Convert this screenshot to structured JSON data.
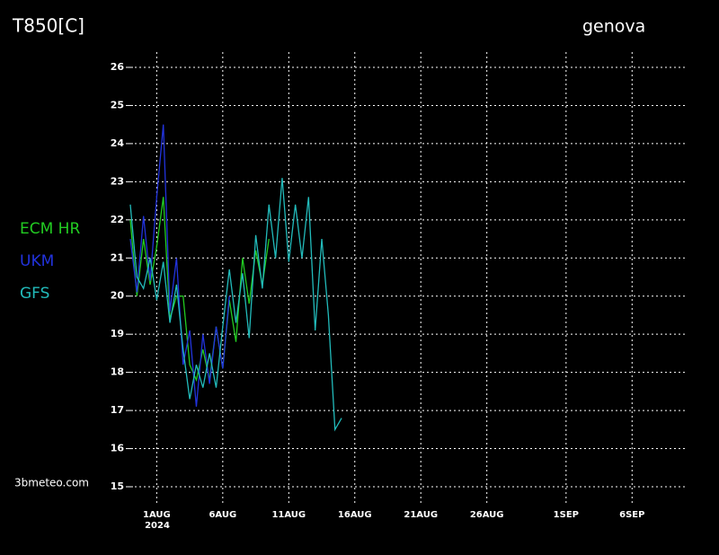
{
  "chart_data": {
    "type": "line",
    "title": "T850[C]",
    "subtitle": "genova",
    "year_label": "2024",
    "source": "3bmeteo.com",
    "xlim": [
      -1,
      41.2
    ],
    "ylim": [
      15,
      26
    ],
    "yticks": [
      15,
      16,
      17,
      18,
      19,
      20,
      21,
      22,
      23,
      24,
      25,
      26
    ],
    "xticks": [
      {
        "value": 1,
        "label": "1AUG"
      },
      {
        "value": 6,
        "label": "6AUG"
      },
      {
        "value": 11,
        "label": "11AUG"
      },
      {
        "value": 16,
        "label": "16AUG"
      },
      {
        "value": 21,
        "label": "21AUG"
      },
      {
        "value": 26,
        "label": "26AUG"
      },
      {
        "value": 32,
        "label": "1SEP"
      },
      {
        "value": 37,
        "label": "6SEP"
      }
    ],
    "grid": true,
    "series": [
      {
        "name": "ECM HR",
        "color": "#22cc22",
        "x": [
          -1,
          -0.5,
          0,
          0.5,
          1,
          1.5,
          2,
          2.5,
          3,
          3.5,
          4,
          4.5,
          5,
          5.5,
          6,
          6.5,
          7,
          7.5,
          8,
          8.5,
          9,
          9.5
        ],
        "values": [
          22.0,
          20.0,
          21.5,
          20.3,
          21.3,
          22.6,
          19.4,
          20.0,
          20.0,
          18.2,
          17.8,
          18.6,
          17.8,
          19.2,
          18.1,
          19.9,
          18.8,
          21.0,
          19.8,
          21.2,
          20.3,
          21.5
        ]
      },
      {
        "name": "UKM",
        "color": "#2233dd",
        "x": [
          -1,
          -0.5,
          0,
          0.5,
          1,
          1.5,
          2,
          2.5,
          3,
          3.5,
          4,
          4.5,
          5,
          5.5,
          6,
          6.5
        ],
        "values": [
          21.5,
          20.1,
          22.1,
          20.4,
          22.6,
          24.5,
          19.6,
          21.0,
          18.2,
          19.1,
          17.1,
          19.0,
          17.7,
          19.2,
          18.1,
          20.0
        ]
      },
      {
        "name": "GFS",
        "color": "#22bbbb",
        "x": [
          -1,
          -0.5,
          0,
          0.5,
          1,
          1.5,
          2,
          2.5,
          3,
          3.5,
          4,
          4.5,
          5,
          5.5,
          6,
          6.5,
          7,
          7.5,
          8,
          8.5,
          9,
          9.5,
          10,
          10.5,
          11,
          11.5,
          12,
          12.5,
          13,
          13.5,
          14,
          14.5,
          15
        ],
        "values": [
          22.4,
          20.5,
          20.2,
          21.0,
          19.9,
          20.9,
          19.3,
          20.3,
          18.6,
          17.3,
          18.2,
          17.6,
          18.5,
          17.6,
          19.2,
          20.7,
          19.3,
          20.6,
          18.9,
          21.6,
          20.2,
          22.4,
          21.0,
          23.1,
          20.9,
          22.4,
          21.0,
          22.6,
          19.1,
          21.5,
          19.5,
          16.5,
          16.8
        ]
      }
    ]
  }
}
